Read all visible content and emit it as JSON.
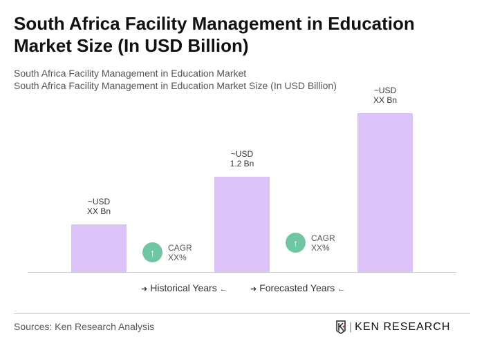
{
  "title": "South Africa Facility Management in Education Market Size (In USD Billion)",
  "subtitle1": "South Africa Facility Management in Education Market",
  "subtitle2": "South Africa Facility Management in Education Market Size (In USD Billion)",
  "chart_data": {
    "type": "bar",
    "categories": [
      "",
      "",
      ""
    ],
    "values": [
      0.6,
      1.2,
      2.0
    ],
    "data_labels": [
      [
        "~USD",
        "XX Bn"
      ],
      [
        "~USD",
        "1.2 Bn"
      ],
      [
        "~USD",
        "XX Bn"
      ]
    ],
    "ylim": [
      0,
      2.0
    ],
    "bar_color": "#dcc3f7",
    "grid": false,
    "annotations": [
      [
        "CAGR",
        "XX%"
      ],
      [
        "CAGR",
        "XX%"
      ]
    ]
  },
  "legend": {
    "historical": "Historical Years",
    "forecasted": "Forecasted Years"
  },
  "colors": {
    "cagr_circle": "#6fc6a3"
  },
  "footer": {
    "sources": "Sources: Ken Research Analysis",
    "logo": "KEN RESEARCH"
  }
}
